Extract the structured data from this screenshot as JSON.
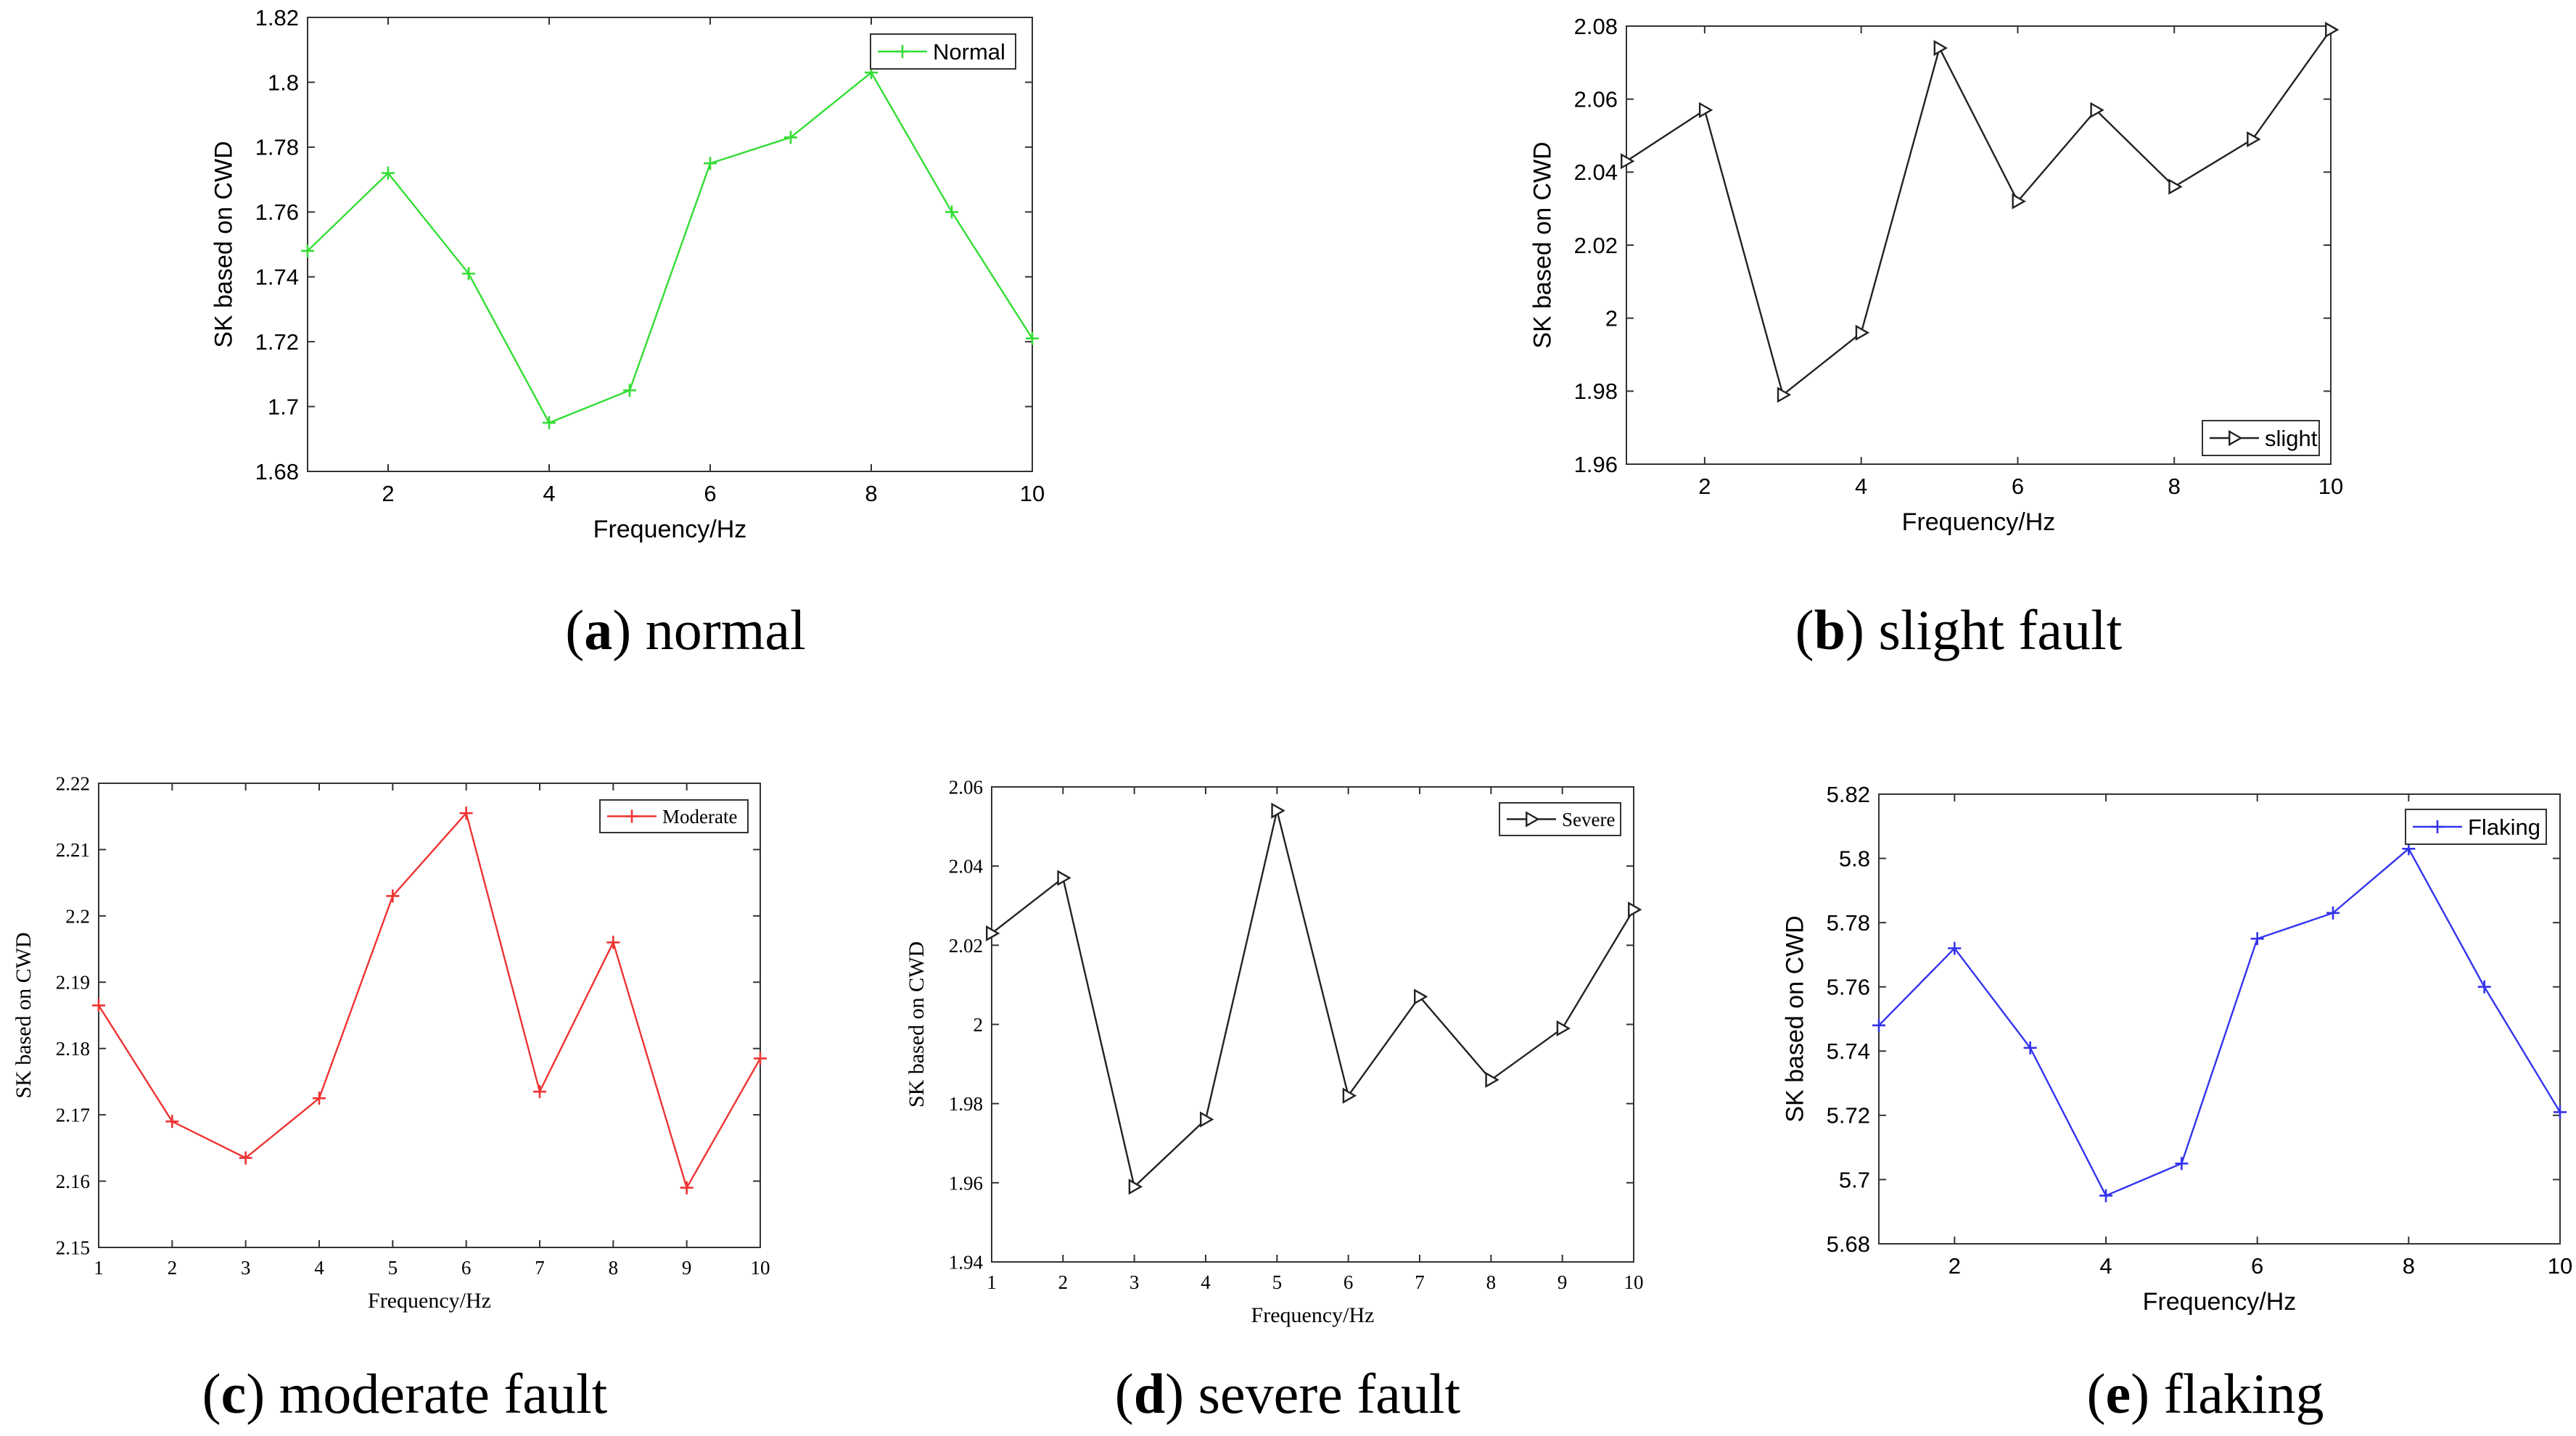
{
  "chart_data": [
    {
      "type": "line",
      "caption_letter": "a",
      "caption_text": "normal",
      "xlabel": "Frequency/Hz",
      "ylabel": "SK based on CWD",
      "x": [
        1,
        2,
        3,
        4,
        5,
        6,
        7,
        8,
        9,
        10
      ],
      "xlim": [
        1,
        10
      ],
      "xticks": [
        "2",
        "4",
        "6",
        "8",
        "10"
      ],
      "ylim": [
        1.68,
        1.82
      ],
      "yticks": [
        "1.68",
        "1.7",
        "1.72",
        "1.74",
        "1.76",
        "1.78",
        "1.8",
        "1.82"
      ],
      "grid": false,
      "legend_position": "top-right",
      "series": [
        {
          "name": "Normal",
          "color": "#33dd33",
          "marker": "plus",
          "values": [
            1.748,
            1.772,
            1.741,
            1.695,
            1.705,
            1.775,
            1.783,
            1.803,
            1.76,
            1.721
          ]
        }
      ]
    },
    {
      "type": "line",
      "caption_letter": "b",
      "caption_text": "slight fault",
      "xlabel": "Frequency/Hz",
      "ylabel": "SK based on CWD",
      "x": [
        1,
        2,
        3,
        4,
        5,
        6,
        7,
        8,
        9,
        10
      ],
      "xlim": [
        1,
        10
      ],
      "xticks": [
        "2",
        "4",
        "6",
        "8",
        "10"
      ],
      "ylim": [
        1.96,
        2.08
      ],
      "yticks": [
        "1.96",
        "1.98",
        "2",
        "2.02",
        "2.04",
        "2.06",
        "2.08"
      ],
      "grid": false,
      "legend_position": "bottom-right",
      "series": [
        {
          "name": "slight",
          "color": "#222222",
          "marker": "triangle-right",
          "values": [
            2.043,
            2.057,
            1.979,
            1.996,
            2.074,
            2.032,
            2.057,
            2.036,
            2.049,
            2.079
          ]
        }
      ]
    },
    {
      "type": "line",
      "caption_letter": "c",
      "caption_text": "moderate fault",
      "xlabel": "Frequency/Hz",
      "ylabel": "SK based on CWD",
      "x": [
        1,
        2,
        3,
        4,
        5,
        6,
        7,
        8,
        9,
        10
      ],
      "xlim": [
        1,
        10
      ],
      "xticks": [
        "1",
        "2",
        "3",
        "4",
        "5",
        "6",
        "7",
        "8",
        "9",
        "10"
      ],
      "ylim": [
        2.15,
        2.22
      ],
      "yticks": [
        "2.15",
        "2.16",
        "2.17",
        "2.18",
        "2.19",
        "2.2",
        "2.21",
        "2.22"
      ],
      "grid": false,
      "legend_position": "top-right",
      "series": [
        {
          "name": "Moderate",
          "color": "#ee3333",
          "marker": "plus",
          "values": [
            2.1865,
            2.169,
            2.1635,
            2.1725,
            2.203,
            2.2155,
            2.1735,
            2.196,
            2.159,
            2.1785
          ]
        }
      ]
    },
    {
      "type": "line",
      "caption_letter": "d",
      "caption_text": "severe fault",
      "xlabel": "Frequency/Hz",
      "ylabel": "SK based on CWD",
      "x": [
        1,
        2,
        3,
        4,
        5,
        6,
        7,
        8,
        9,
        10
      ],
      "xlim": [
        1,
        10
      ],
      "xticks": [
        "1",
        "2",
        "3",
        "4",
        "5",
        "6",
        "7",
        "8",
        "9",
        "10"
      ],
      "ylim": [
        1.94,
        2.06
      ],
      "yticks": [
        "1.94",
        "1.96",
        "1.98",
        "2",
        "2.02",
        "2.04",
        "2.06"
      ],
      "grid": false,
      "legend_position": "top-right",
      "series": [
        {
          "name": "Severe",
          "color": "#222222",
          "marker": "triangle-right",
          "values": [
            2.023,
            2.037,
            1.959,
            1.976,
            2.054,
            1.982,
            2.007,
            1.986,
            1.999,
            2.029
          ]
        }
      ]
    },
    {
      "type": "line",
      "caption_letter": "e",
      "caption_text": "flaking",
      "xlabel": "Frequency/Hz",
      "ylabel": "SK based on CWD",
      "x": [
        1,
        2,
        3,
        4,
        5,
        6,
        7,
        8,
        9,
        10
      ],
      "xlim": [
        1,
        10
      ],
      "xticks": [
        "2",
        "4",
        "6",
        "8",
        "10"
      ],
      "ylim": [
        5.68,
        5.82
      ],
      "yticks": [
        "5.68",
        "5.7",
        "5.72",
        "5.74",
        "5.76",
        "5.78",
        "5.8",
        "5.82"
      ],
      "grid": false,
      "legend_position": "top-right",
      "series": [
        {
          "name": "Flaking",
          "color": "#3333ee",
          "marker": "plus",
          "values": [
            5.748,
            5.772,
            5.741,
            5.695,
            5.705,
            5.775,
            5.783,
            5.803,
            5.76,
            5.721
          ]
        }
      ]
    }
  ]
}
